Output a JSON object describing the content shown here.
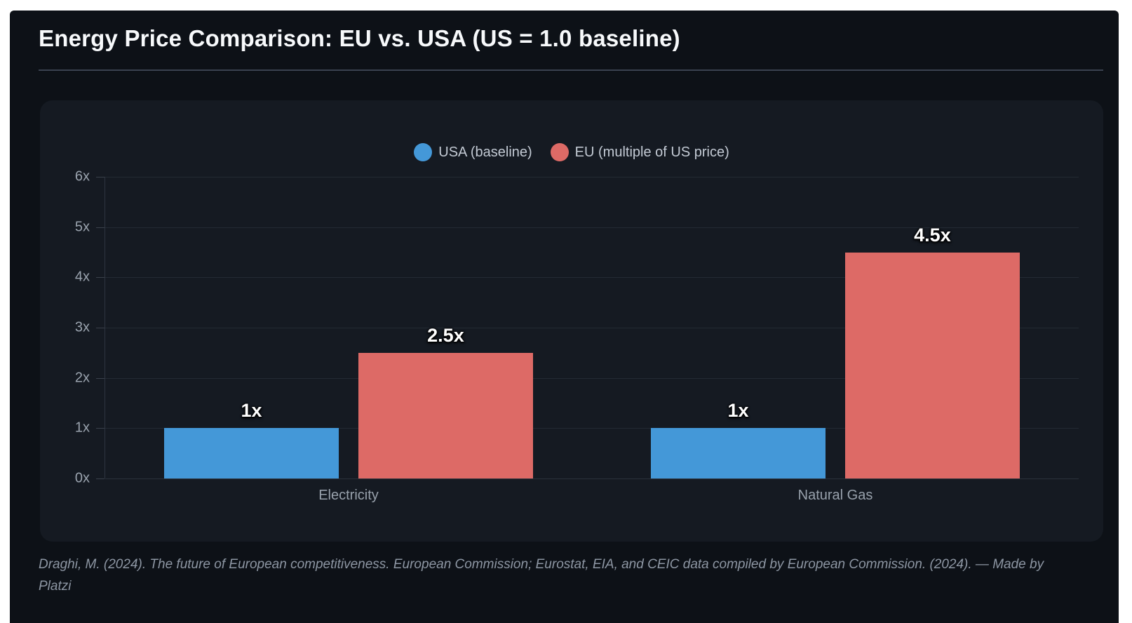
{
  "header": {
    "title": "Energy Price Comparison: EU vs. USA (US = 1.0 baseline)"
  },
  "chart_data": {
    "type": "bar",
    "title": "Energy Price Comparison: EU vs. USA (US = 1.0 baseline)",
    "categories": [
      "Electricity",
      "Natural Gas"
    ],
    "series": [
      {
        "name": "USA (baseline)",
        "color": "#4498d8",
        "values": [
          1,
          1
        ],
        "data_labels": [
          "1x",
          "1x"
        ]
      },
      {
        "name": "EU (multiple of US price)",
        "color": "#dd6a66",
        "values": [
          2.5,
          4.5
        ],
        "data_labels": [
          "2.5x",
          "4.5x"
        ]
      }
    ],
    "ylabel": "",
    "xlabel": "",
    "ylim": [
      0,
      6
    ],
    "yticks": [
      {
        "value": 0,
        "label": "0x"
      },
      {
        "value": 1,
        "label": "1x"
      },
      {
        "value": 2,
        "label": "2x"
      },
      {
        "value": 3,
        "label": "3x"
      },
      {
        "value": 4,
        "label": "4x"
      },
      {
        "value": 5,
        "label": "5x"
      },
      {
        "value": 6,
        "label": "6x"
      },
      {
        "value": 6,
        "label": "6x"
      }
    ],
    "grid": true,
    "legend_position": "top-center"
  },
  "legend": {
    "items": [
      {
        "label": "USA (baseline)",
        "color": "#4498d8"
      },
      {
        "label": "EU (multiple of US price)",
        "color": "#dd6a66"
      }
    ]
  },
  "footer": {
    "citation": "Draghi, M. (2024). The future of European competitiveness. European Commission; Eurostat, EIA, and CEIC data compiled by European Commission. (2024). — Made by Platzi"
  },
  "colors": {
    "page_background": "#ffffff",
    "panel_background": "#0d1117",
    "card_background": "#151a22",
    "title_text": "#f7f9fb",
    "divider": "#3a4250",
    "gridline": "#232a33",
    "tick_text": "#9aa3ae",
    "category_text": "#98a1ac",
    "legend_text": "#c3cad4",
    "value_label_text": "#ffffff",
    "footer_text": "#8d96a3",
    "usa_bar": "#4498d8",
    "eu_bar": "#dd6a66"
  }
}
